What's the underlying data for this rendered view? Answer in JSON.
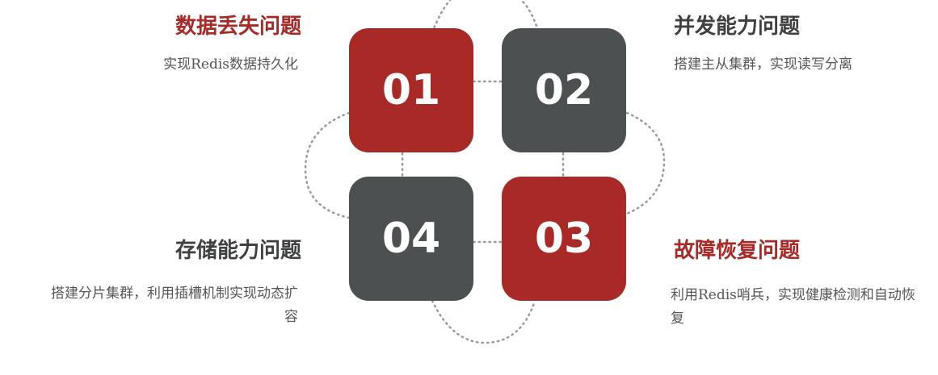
{
  "colors": {
    "red": "#a92927",
    "gray": "#4c5050",
    "dots": "#9b9b9b"
  },
  "items": [
    {
      "number": "01",
      "title": "数据丢失问题",
      "desc": "实现Redis数据持久化"
    },
    {
      "number": "02",
      "title": "并发能力问题",
      "desc": "搭建主从集群，实现读写分离"
    },
    {
      "number": "03",
      "title": "故障恢复问题",
      "desc": "利用Redis哨兵，实现健康检测和自动恢复"
    },
    {
      "number": "04",
      "title": "存储能力问题",
      "desc": "搭建分片集群，利用插槽机制实现动态扩容"
    }
  ]
}
